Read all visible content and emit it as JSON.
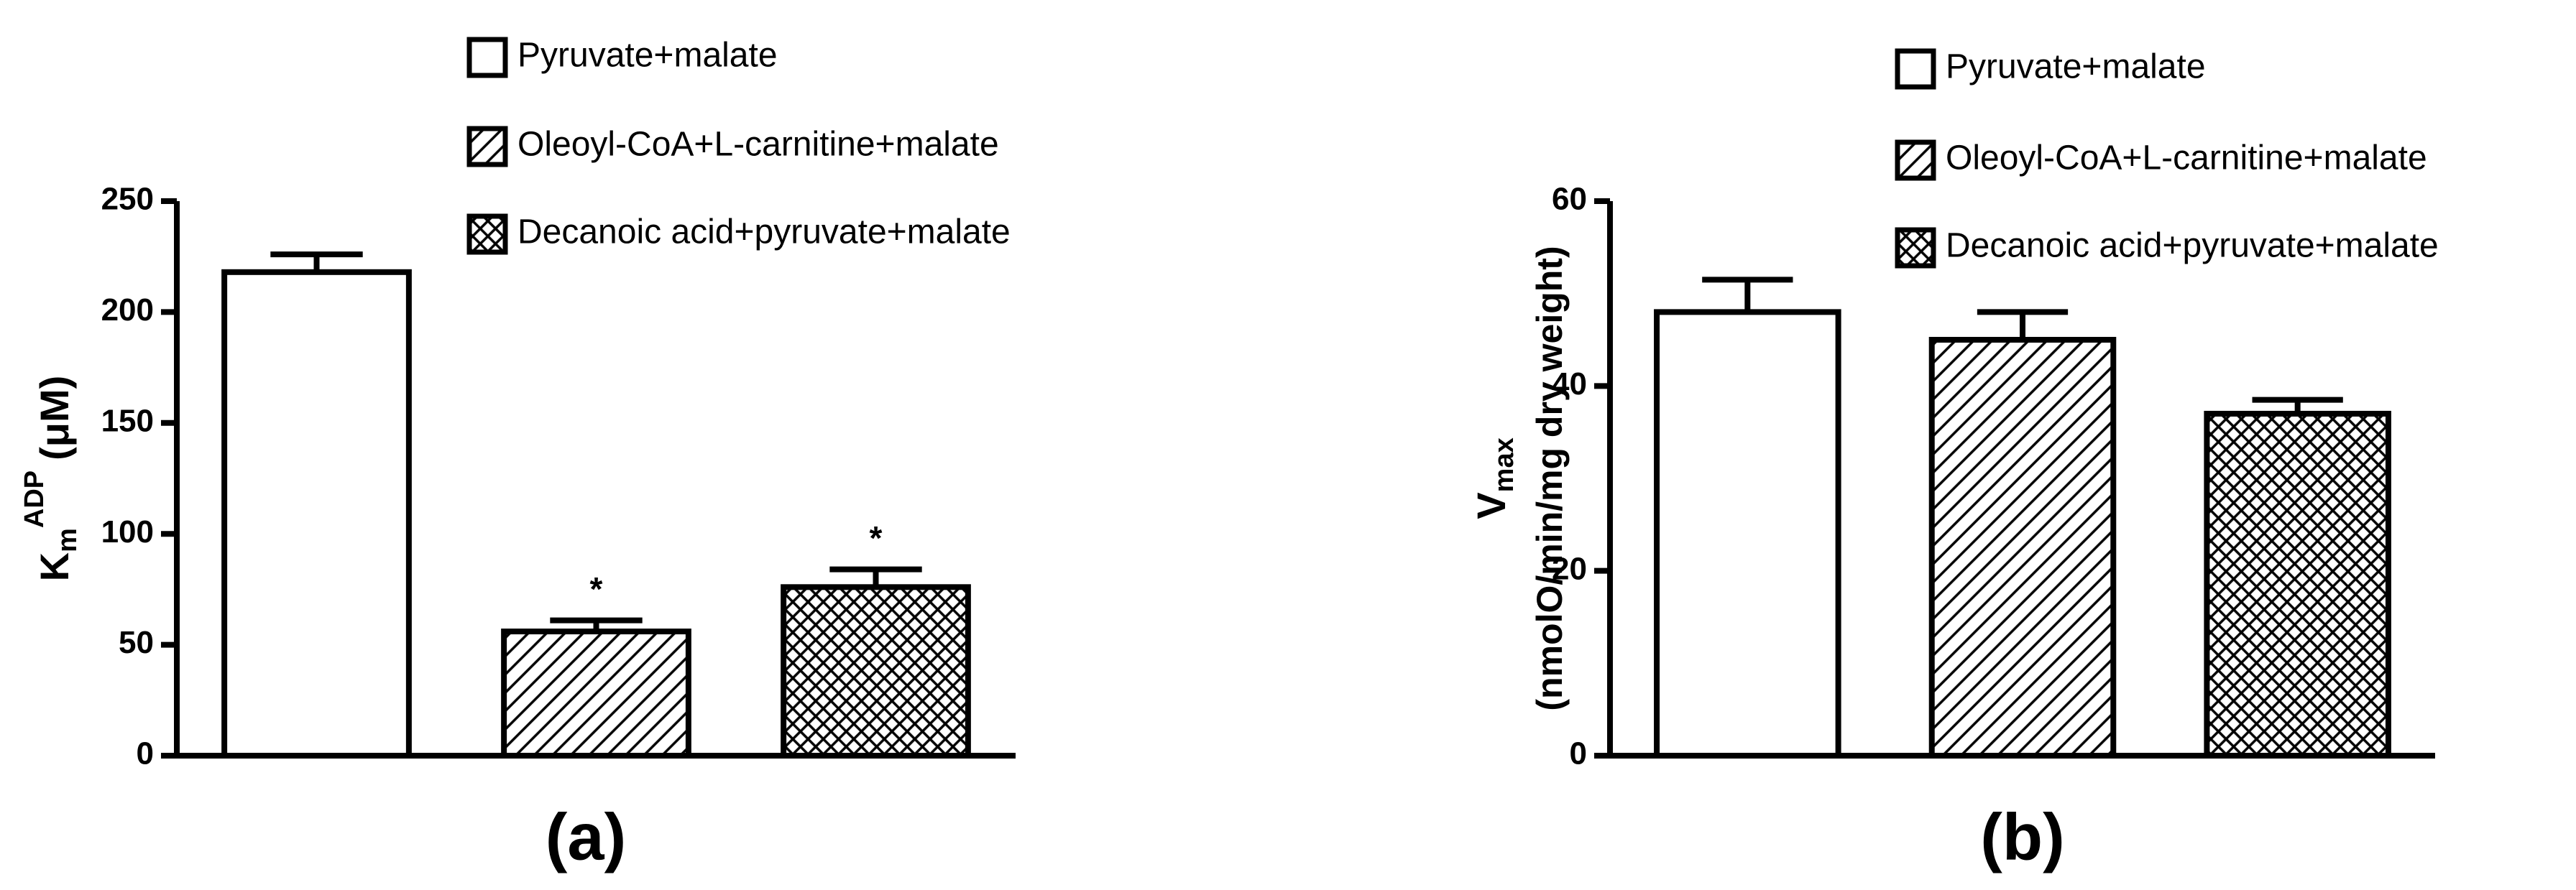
{
  "chart_data": [
    {
      "type": "bar",
      "panel_label": "(a)",
      "ylabel": {
        "symbol": "K",
        "subscript": "m",
        "superscript": "ADP",
        "unit": "(μM)"
      },
      "ylim": [
        0,
        250
      ],
      "yticks": [
        0,
        50,
        100,
        150,
        200,
        250
      ],
      "series": [
        {
          "name": "Pyruvate+malate",
          "pattern": "none",
          "color": "#ffffff",
          "values": [
            218
          ],
          "errors": [
            8
          ]
        },
        {
          "name": "Oleoyl-CoA+L-carnitine+malate",
          "pattern": "hatch",
          "color": "#ffffff",
          "values": [
            56
          ],
          "errors": [
            5
          ],
          "annotation": "*"
        },
        {
          "name": "Decanoic acid+pyruvate+malate",
          "pattern": "crosshatch",
          "color": "#ffffff",
          "values": [
            76
          ],
          "errors": [
            8
          ],
          "annotation": "*"
        }
      ]
    },
    {
      "type": "bar",
      "panel_label": "(b)",
      "ylabel": {
        "symbol": "V",
        "subscript": "max",
        "unit": "(nmolO/min/mg dry weight)"
      },
      "ylim": [
        0,
        60
      ],
      "yticks": [
        0,
        20,
        40,
        60
      ],
      "series": [
        {
          "name": "Pyruvate+malate",
          "pattern": "none",
          "color": "#ffffff",
          "values": [
            48
          ],
          "errors": [
            3.5
          ]
        },
        {
          "name": "Oleoyl-CoA+L-carnitine+malate",
          "pattern": "hatch",
          "color": "#ffffff",
          "values": [
            45
          ],
          "errors": [
            3
          ]
        },
        {
          "name": "Decanoic acid+pyruvate+malate",
          "pattern": "crosshatch",
          "color": "#ffffff",
          "values": [
            37
          ],
          "errors": [
            1.5
          ]
        }
      ]
    }
  ]
}
